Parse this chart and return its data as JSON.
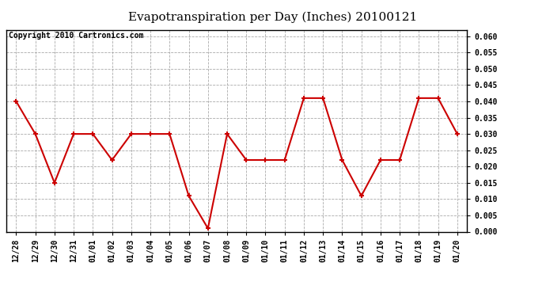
{
  "title": "Evapotranspiration per Day (Inches) 20100121",
  "copyright_text": "Copyright 2010 Cartronics.com",
  "x_labels": [
    "12/28",
    "12/29",
    "12/30",
    "12/31",
    "01/01",
    "01/02",
    "01/03",
    "01/04",
    "01/05",
    "01/06",
    "01/07",
    "01/08",
    "01/09",
    "01/10",
    "01/11",
    "01/12",
    "01/13",
    "01/14",
    "01/15",
    "01/16",
    "01/17",
    "01/18",
    "01/19",
    "01/20"
  ],
  "y_values": [
    0.04,
    0.03,
    0.015,
    0.03,
    0.03,
    0.022,
    0.03,
    0.03,
    0.03,
    0.011,
    0.001,
    0.03,
    0.022,
    0.022,
    0.022,
    0.041,
    0.041,
    0.022,
    0.011,
    0.022,
    0.022,
    0.041,
    0.041,
    0.03
  ],
  "line_color": "#cc0000",
  "marker": "+",
  "marker_size": 5,
  "ylim": [
    0.0,
    0.062
  ],
  "yticks": [
    0.0,
    0.005,
    0.01,
    0.015,
    0.02,
    0.025,
    0.03,
    0.035,
    0.04,
    0.045,
    0.05,
    0.055,
    0.06
  ],
  "background_color": "#ffffff",
  "plot_bg_color": "#ffffff",
  "grid_color": "#aaaaaa",
  "title_fontsize": 11,
  "copyright_fontsize": 7,
  "tick_fontsize": 7,
  "figwidth": 6.9,
  "figheight": 3.75,
  "dpi": 100
}
